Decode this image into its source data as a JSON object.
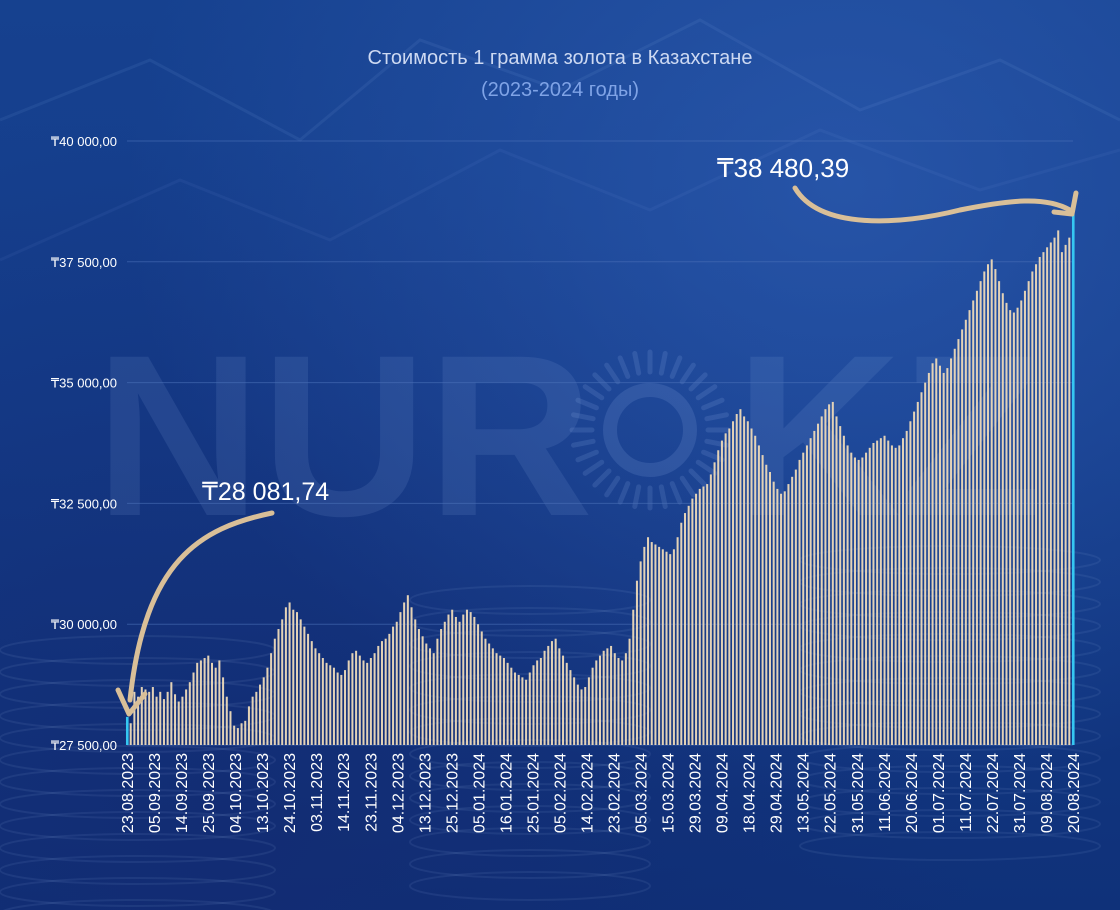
{
  "watermark": {
    "text": "NUR",
    "text2": "KZ"
  },
  "chart_data": {
    "type": "bar",
    "title": "Стоимость 1 грамма золота в Казахстане",
    "subtitle": "(2023-2024 годы)",
    "currency_symbol": "₸",
    "ylim": [
      27500,
      40000
    ],
    "y_ticks": [
      "₸27 500,00",
      "₸30 000,00",
      "₸32 500,00",
      "₸35 000,00",
      "₸37 500,00",
      "₸40 000,00"
    ],
    "y_tick_values": [
      27500,
      30000,
      32500,
      35000,
      37500,
      40000
    ],
    "x_tick_labels": [
      "23.08.2023",
      "05.09.2023",
      "14.09.2023",
      "25.09.2023",
      "04.10.2023",
      "13.10.2023",
      "24.10.2023",
      "03.11.2023",
      "14.11.2023",
      "23.11.2023",
      "04.12.2023",
      "13.12.2023",
      "25.12.2023",
      "05.01.2024",
      "16.01.2024",
      "25.01.2024",
      "05.02.2024",
      "14.02.2024",
      "23.02.2024",
      "05.03.2024",
      "15.03.2024",
      "29.03.2024",
      "09.04.2024",
      "18.04.2024",
      "29.04.2024",
      "13.05.2024",
      "22.05.2024",
      "31.05.2024",
      "11.06.2024",
      "20.06.2024",
      "01.07.2024",
      "11.07.2024",
      "22.07.2024",
      "31.07.2024",
      "09.08.2024",
      "20.08.2024"
    ],
    "annotations": [
      {
        "text": "₸28 081,74",
        "value": 28081.74,
        "target": "first"
      },
      {
        "text": "₸38 480,39",
        "value": 38480.39,
        "target": "last"
      }
    ],
    "colors": {
      "bar": "#e3d2b7",
      "highlight": "#35c7f2",
      "arrow": "#d9bf98",
      "grid": "#4a6fb8",
      "text": "#ffffff"
    },
    "values": [
      28081.74,
      27950,
      28600,
      28500,
      28700,
      28650,
      28600,
      28700,
      28500,
      28600,
      28450,
      28600,
      28800,
      28550,
      28400,
      28500,
      28650,
      28800,
      29000,
      29200,
      29250,
      29300,
      29350,
      29200,
      29100,
      29250,
      28900,
      28500,
      28200,
      27900,
      27850,
      27950,
      28000,
      28300,
      28500,
      28600,
      28750,
      28900,
      29100,
      29400,
      29700,
      29900,
      30100,
      30350,
      30450,
      30300,
      30250,
      30100,
      29950,
      29800,
      29650,
      29500,
      29400,
      29300,
      29200,
      29150,
      29100,
      29000,
      28950,
      29050,
      29250,
      29400,
      29450,
      29350,
      29250,
      29200,
      29300,
      29400,
      29550,
      29650,
      29700,
      29800,
      29950,
      30050,
      30250,
      30450,
      30600,
      30350,
      30100,
      29900,
      29750,
      29600,
      29500,
      29400,
      29700,
      29900,
      30050,
      30200,
      30300,
      30150,
      30050,
      30200,
      30300,
      30250,
      30150,
      30000,
      29850,
      29700,
      29600,
      29500,
      29400,
      29350,
      29300,
      29200,
      29100,
      29000,
      28950,
      28900,
      28850,
      29000,
      29150,
      29250,
      29300,
      29450,
      29550,
      29650,
      29700,
      29500,
      29350,
      29200,
      29050,
      28900,
      28750,
      28650,
      28700,
      28900,
      29100,
      29250,
      29350,
      29450,
      29500,
      29550,
      29400,
      29300,
      29250,
      29400,
      29700,
      30300,
      30900,
      31300,
      31600,
      31800,
      31700,
      31650,
      31600,
      31550,
      31500,
      31450,
      31550,
      31800,
      32100,
      32300,
      32450,
      32600,
      32700,
      32800,
      32850,
      32900,
      33100,
      33350,
      33600,
      33800,
      33950,
      34050,
      34200,
      34350,
      34450,
      34300,
      34200,
      34050,
      33900,
      33700,
      33500,
      33300,
      33150,
      32950,
      32800,
      32700,
      32750,
      32900,
      33050,
      33200,
      33400,
      33550,
      33700,
      33850,
      34000,
      34150,
      34300,
      34450,
      34550,
      34600,
      34300,
      34100,
      33900,
      33700,
      33550,
      33450,
      33400,
      33450,
      33550,
      33650,
      33750,
      33800,
      33850,
      33900,
      33800,
      33700,
      33650,
      33700,
      33850,
      34000,
      34200,
      34400,
      34600,
      34800,
      35000,
      35200,
      35400,
      35500,
      35350,
      35200,
      35300,
      35500,
      35700,
      35900,
      36100,
      36300,
      36500,
      36700,
      36900,
      37100,
      37300,
      37450,
      37550,
      37350,
      37100,
      36850,
      36650,
      36500,
      36450,
      36550,
      36700,
      36900,
      37100,
      37300,
      37450,
      37600,
      37700,
      37800,
      37900,
      38000,
      38150,
      37700,
      37850,
      38000,
      38480.39
    ]
  }
}
